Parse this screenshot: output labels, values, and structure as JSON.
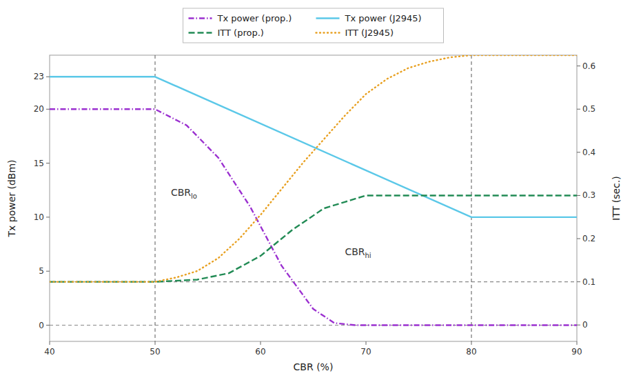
{
  "chart_data": {
    "type": "line",
    "xlabel": "CBR (%)",
    "ylabel": "Tx power (dBm)",
    "y2label": "ITT (sec.)",
    "xlim": [
      40,
      90
    ],
    "ylim": [
      -1.5,
      25
    ],
    "y2lim": [
      -0.038,
      0.625
    ],
    "xticks": [
      40,
      50,
      60,
      70,
      80,
      90
    ],
    "yticks": [
      0,
      5,
      10,
      15,
      20,
      23
    ],
    "y2ticks": [
      0,
      0.1,
      0.2,
      0.3,
      0.4,
      0.5,
      0.6
    ],
    "grid": false,
    "legend": "top",
    "background_color": "#ffffff",
    "series": [
      {
        "name": "Tx power (prop.)",
        "color": "#9b30d0",
        "line_style": "dashdot",
        "axis": "y",
        "x": [
          40,
          48,
          50,
          53,
          56,
          59,
          62,
          65,
          67,
          69,
          70,
          75,
          80,
          90
        ],
        "values": [
          20,
          20,
          20,
          18.5,
          15.5,
          11.0,
          5.5,
          1.5,
          0.2,
          0.0,
          0,
          0,
          0,
          0
        ]
      },
      {
        "name": "Tx power (J2945)",
        "color": "#5bc8e8",
        "line_style": "solid",
        "axis": "y",
        "x": [
          40,
          50,
          80,
          90
        ],
        "values": [
          23,
          23,
          10,
          10
        ]
      },
      {
        "name": "ITT (prop.)",
        "color": "#228b55",
        "line_style": "dashed",
        "axis": "y2",
        "x": [
          40,
          48,
          50,
          54,
          57,
          60,
          63,
          66,
          68,
          70,
          75,
          80,
          90
        ],
        "values": [
          0.1,
          0.1,
          0.1,
          0.105,
          0.12,
          0.16,
          0.22,
          0.27,
          0.285,
          0.3,
          0.3,
          0.3,
          0.3
        ]
      },
      {
        "name": "ITT (J2945)",
        "color": "#e8a020",
        "line_style": "dotted",
        "axis": "y2",
        "x": [
          40,
          48,
          50,
          52,
          54,
          56,
          58,
          60,
          62,
          64,
          66,
          68,
          70,
          72,
          74,
          76,
          78,
          80,
          90
        ],
        "values": [
          0.1,
          0.1,
          0.1,
          0.11,
          0.125,
          0.155,
          0.2,
          0.255,
          0.315,
          0.375,
          0.43,
          0.485,
          0.535,
          0.57,
          0.595,
          0.61,
          0.62,
          0.625,
          0.625
        ]
      }
    ],
    "reference_lines": [
      {
        "axis": "y",
        "value": 0,
        "color": "#888888"
      },
      {
        "axis": "y2",
        "value": 0.1,
        "color": "#888888"
      },
      {
        "axis": "x",
        "value": 50,
        "color": "#666666"
      },
      {
        "axis": "x",
        "value": 80,
        "color": "#666666"
      }
    ],
    "annotations": [
      {
        "text": "CBR",
        "subscript": "lo",
        "x": 51.5,
        "y": 12.0,
        "color": "#333333"
      },
      {
        "text": "CBR",
        "subscript": "hi",
        "x": 68.0,
        "y": 6.5,
        "color": "#333333"
      }
    ]
  }
}
